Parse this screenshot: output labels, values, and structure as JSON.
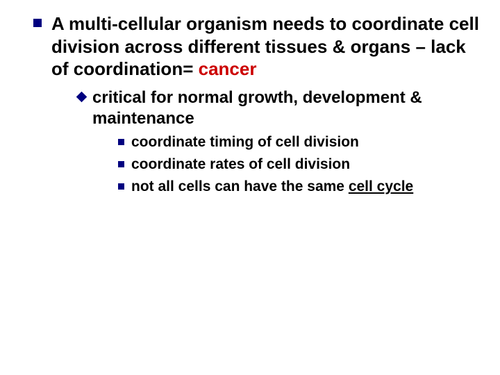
{
  "colors": {
    "bullet": "#000080",
    "danger": "#cc0000",
    "text": "#000000",
    "background": "#ffffff"
  },
  "typography": {
    "family": "Arial",
    "level1_size": 26,
    "level2_size": 24,
    "level3_size": 21,
    "weight": "bold"
  },
  "bullets": {
    "level1": {
      "shape": "square",
      "size": 12
    },
    "level2": {
      "shape": "diamond",
      "size": 11
    },
    "level3": {
      "shape": "square",
      "size": 9
    }
  },
  "content": {
    "l1_pre": "A multi-cellular organism needs to coordinate cell division across different tissues & organs – lack of coordination= ",
    "l1_danger": "cancer",
    "l2": "critical for normal growth, development & maintenance",
    "l3_a": "coordinate timing of cell division",
    "l3_b": "coordinate rates of cell division",
    "l3_c_pre": "not all cells can have the same ",
    "l3_c_underline": "cell cycle"
  }
}
